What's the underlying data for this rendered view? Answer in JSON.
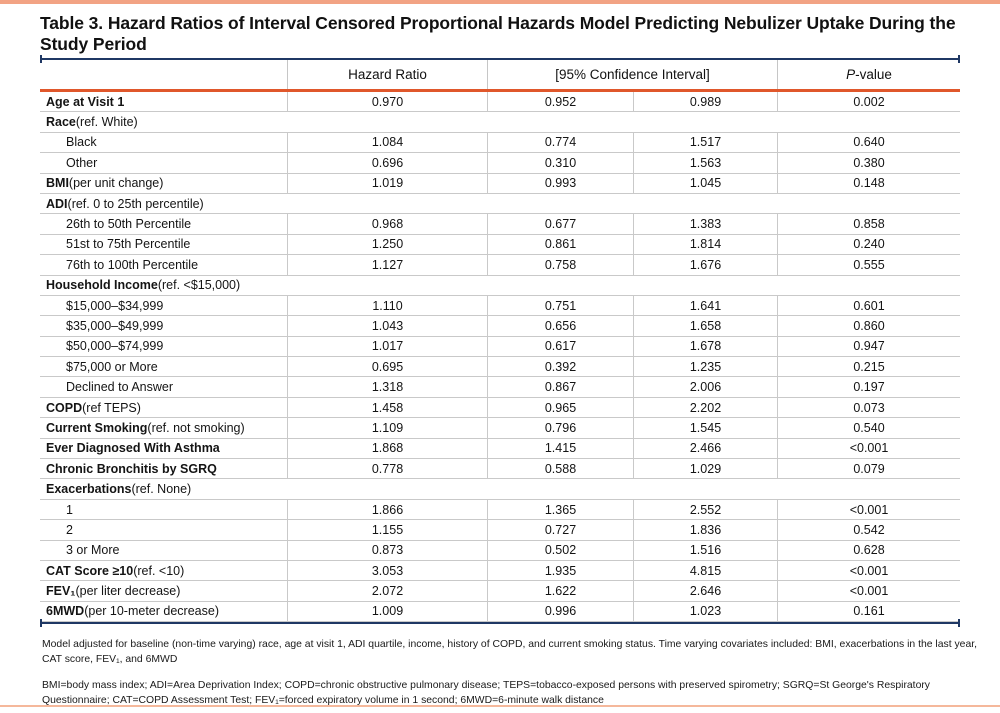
{
  "title": "Table 3. Hazard Ratios of Interval Censored Proportional Hazards Model Predicting Nebulizer Uptake During the Study Period",
  "header": {
    "hazard_ratio": "Hazard Ratio",
    "confidence_interval": "[95% Confidence Interval]",
    "p_italic": "P",
    "p_rest": "-value"
  },
  "rows": [
    {
      "type": "data",
      "bold": "Age at Visit 1",
      "normal": "",
      "indent": false,
      "hr": "0.970",
      "lo": "0.952",
      "hi": "0.989",
      "p": "0.002"
    },
    {
      "type": "section",
      "bold": "Race",
      "normal": "(ref. White)"
    },
    {
      "type": "data",
      "bold": "",
      "normal": "Black",
      "indent": true,
      "hr": "1.084",
      "lo": "0.774",
      "hi": "1.517",
      "p": "0.640"
    },
    {
      "type": "data",
      "bold": "",
      "normal": "Other",
      "indent": true,
      "hr": "0.696",
      "lo": "0.310",
      "hi": "1.563",
      "p": "0.380"
    },
    {
      "type": "data",
      "bold": "BMI",
      "normal": "(per unit change)",
      "indent": false,
      "hr": "1.019",
      "lo": "0.993",
      "hi": "1.045",
      "p": "0.148"
    },
    {
      "type": "section",
      "bold": "ADI",
      "normal": "(ref. 0 to 25th percentile)"
    },
    {
      "type": "data",
      "bold": "",
      "normal": "26th to 50th Percentile",
      "indent": true,
      "hr": "0.968",
      "lo": "0.677",
      "hi": "1.383",
      "p": "0.858"
    },
    {
      "type": "data",
      "bold": "",
      "normal": "51st to 75th Percentile",
      "indent": true,
      "hr": "1.250",
      "lo": "0.861",
      "hi": "1.814",
      "p": "0.240"
    },
    {
      "type": "data",
      "bold": "",
      "normal": "76th to 100th Percentile",
      "indent": true,
      "hr": "1.127",
      "lo": "0.758",
      "hi": "1.676",
      "p": "0.555"
    },
    {
      "type": "section",
      "bold": "Household Income",
      "normal": "(ref. <$15,000)"
    },
    {
      "type": "data",
      "bold": "",
      "normal": "$15,000–$34,999",
      "indent": true,
      "hr": "1.110",
      "lo": "0.751",
      "hi": "1.641",
      "p": "0.601"
    },
    {
      "type": "data",
      "bold": "",
      "normal": "$35,000–$49,999",
      "indent": true,
      "hr": "1.043",
      "lo": "0.656",
      "hi": "1.658",
      "p": "0.860"
    },
    {
      "type": "data",
      "bold": "",
      "normal": "$50,000–$74,999",
      "indent": true,
      "hr": "1.017",
      "lo": "0.617",
      "hi": "1.678",
      "p": "0.947"
    },
    {
      "type": "data",
      "bold": "",
      "normal": "$75,000 or More",
      "indent": true,
      "hr": "0.695",
      "lo": "0.392",
      "hi": "1.235",
      "p": "0.215"
    },
    {
      "type": "data",
      "bold": "",
      "normal": "Declined to Answer",
      "indent": true,
      "hr": "1.318",
      "lo": "0.867",
      "hi": "2.006",
      "p": "0.197"
    },
    {
      "type": "data",
      "bold": "COPD",
      "normal": "(ref TEPS)",
      "indent": false,
      "hr": "1.458",
      "lo": "0.965",
      "hi": "2.202",
      "p": "0.073"
    },
    {
      "type": "data",
      "bold": "Current Smoking",
      "normal": "(ref. not smoking)",
      "indent": false,
      "hr": "1.109",
      "lo": "0.796",
      "hi": "1.545",
      "p": "0.540"
    },
    {
      "type": "data",
      "bold": "Ever Diagnosed With Asthma",
      "normal": "",
      "indent": false,
      "hr": "1.868",
      "lo": "1.415",
      "hi": "2.466",
      "p": "<0.001"
    },
    {
      "type": "data",
      "bold": "Chronic Bronchitis by SGRQ",
      "normal": "",
      "indent": false,
      "hr": "0.778",
      "lo": "0.588",
      "hi": "1.029",
      "p": "0.079"
    },
    {
      "type": "section",
      "bold": "Exacerbations",
      "normal": "(ref. None)"
    },
    {
      "type": "data",
      "bold": "",
      "normal": "1",
      "indent": true,
      "hr": "1.866",
      "lo": "1.365",
      "hi": "2.552",
      "p": "<0.001"
    },
    {
      "type": "data",
      "bold": "",
      "normal": "2",
      "indent": true,
      "hr": "1.155",
      "lo": "0.727",
      "hi": "1.836",
      "p": "0.542"
    },
    {
      "type": "data",
      "bold": "",
      "normal": "3 or More",
      "indent": true,
      "hr": "0.873",
      "lo": "0.502",
      "hi": "1.516",
      "p": "0.628"
    },
    {
      "type": "data",
      "bold": "CAT Score ≥10",
      "normal": "(ref. <10)",
      "indent": false,
      "hr": "3.053",
      "lo": "1.935",
      "hi": "4.815",
      "p": "<0.001"
    },
    {
      "type": "data",
      "bold": "FEV₁",
      "normal": "(per liter decrease)",
      "indent": false,
      "hr": "2.072",
      "lo": "1.622",
      "hi": "2.646",
      "p": "<0.001"
    },
    {
      "type": "data",
      "bold": "6MWD",
      "normal": "(per 10-meter decrease)",
      "indent": false,
      "hr": "1.009",
      "lo": "0.996",
      "hi": "1.023",
      "p": "0.161"
    }
  ],
  "footnotes": {
    "model_note": "Model adjusted for baseline (non-time varying) race, age at visit 1, ADI quartile, income, history of COPD, and current smoking status. Time varying covariates included: BMI, exacerbations in the last year, CAT score, FEV₁, and 6MWD",
    "abbreviations": "BMI=body mass index; ADI=Area Deprivation Index; COPD=chronic obstructive pulmonary disease; TEPS=tobacco-exposed persons with preserved spirometry; SGRQ=St George's Respiratory Questionnaire; CAT=COPD Assessment Test; FEV₁=forced expiratory volume in 1 second; 6MWD=6-minute walk distance"
  },
  "colors": {
    "accent_salmon": "#F2A384",
    "accent_salmon_light": "#F5B89B",
    "rule_navy": "#1F3864",
    "rule_orange": "#E0572B",
    "grid_gray": "#C9C9C9"
  }
}
